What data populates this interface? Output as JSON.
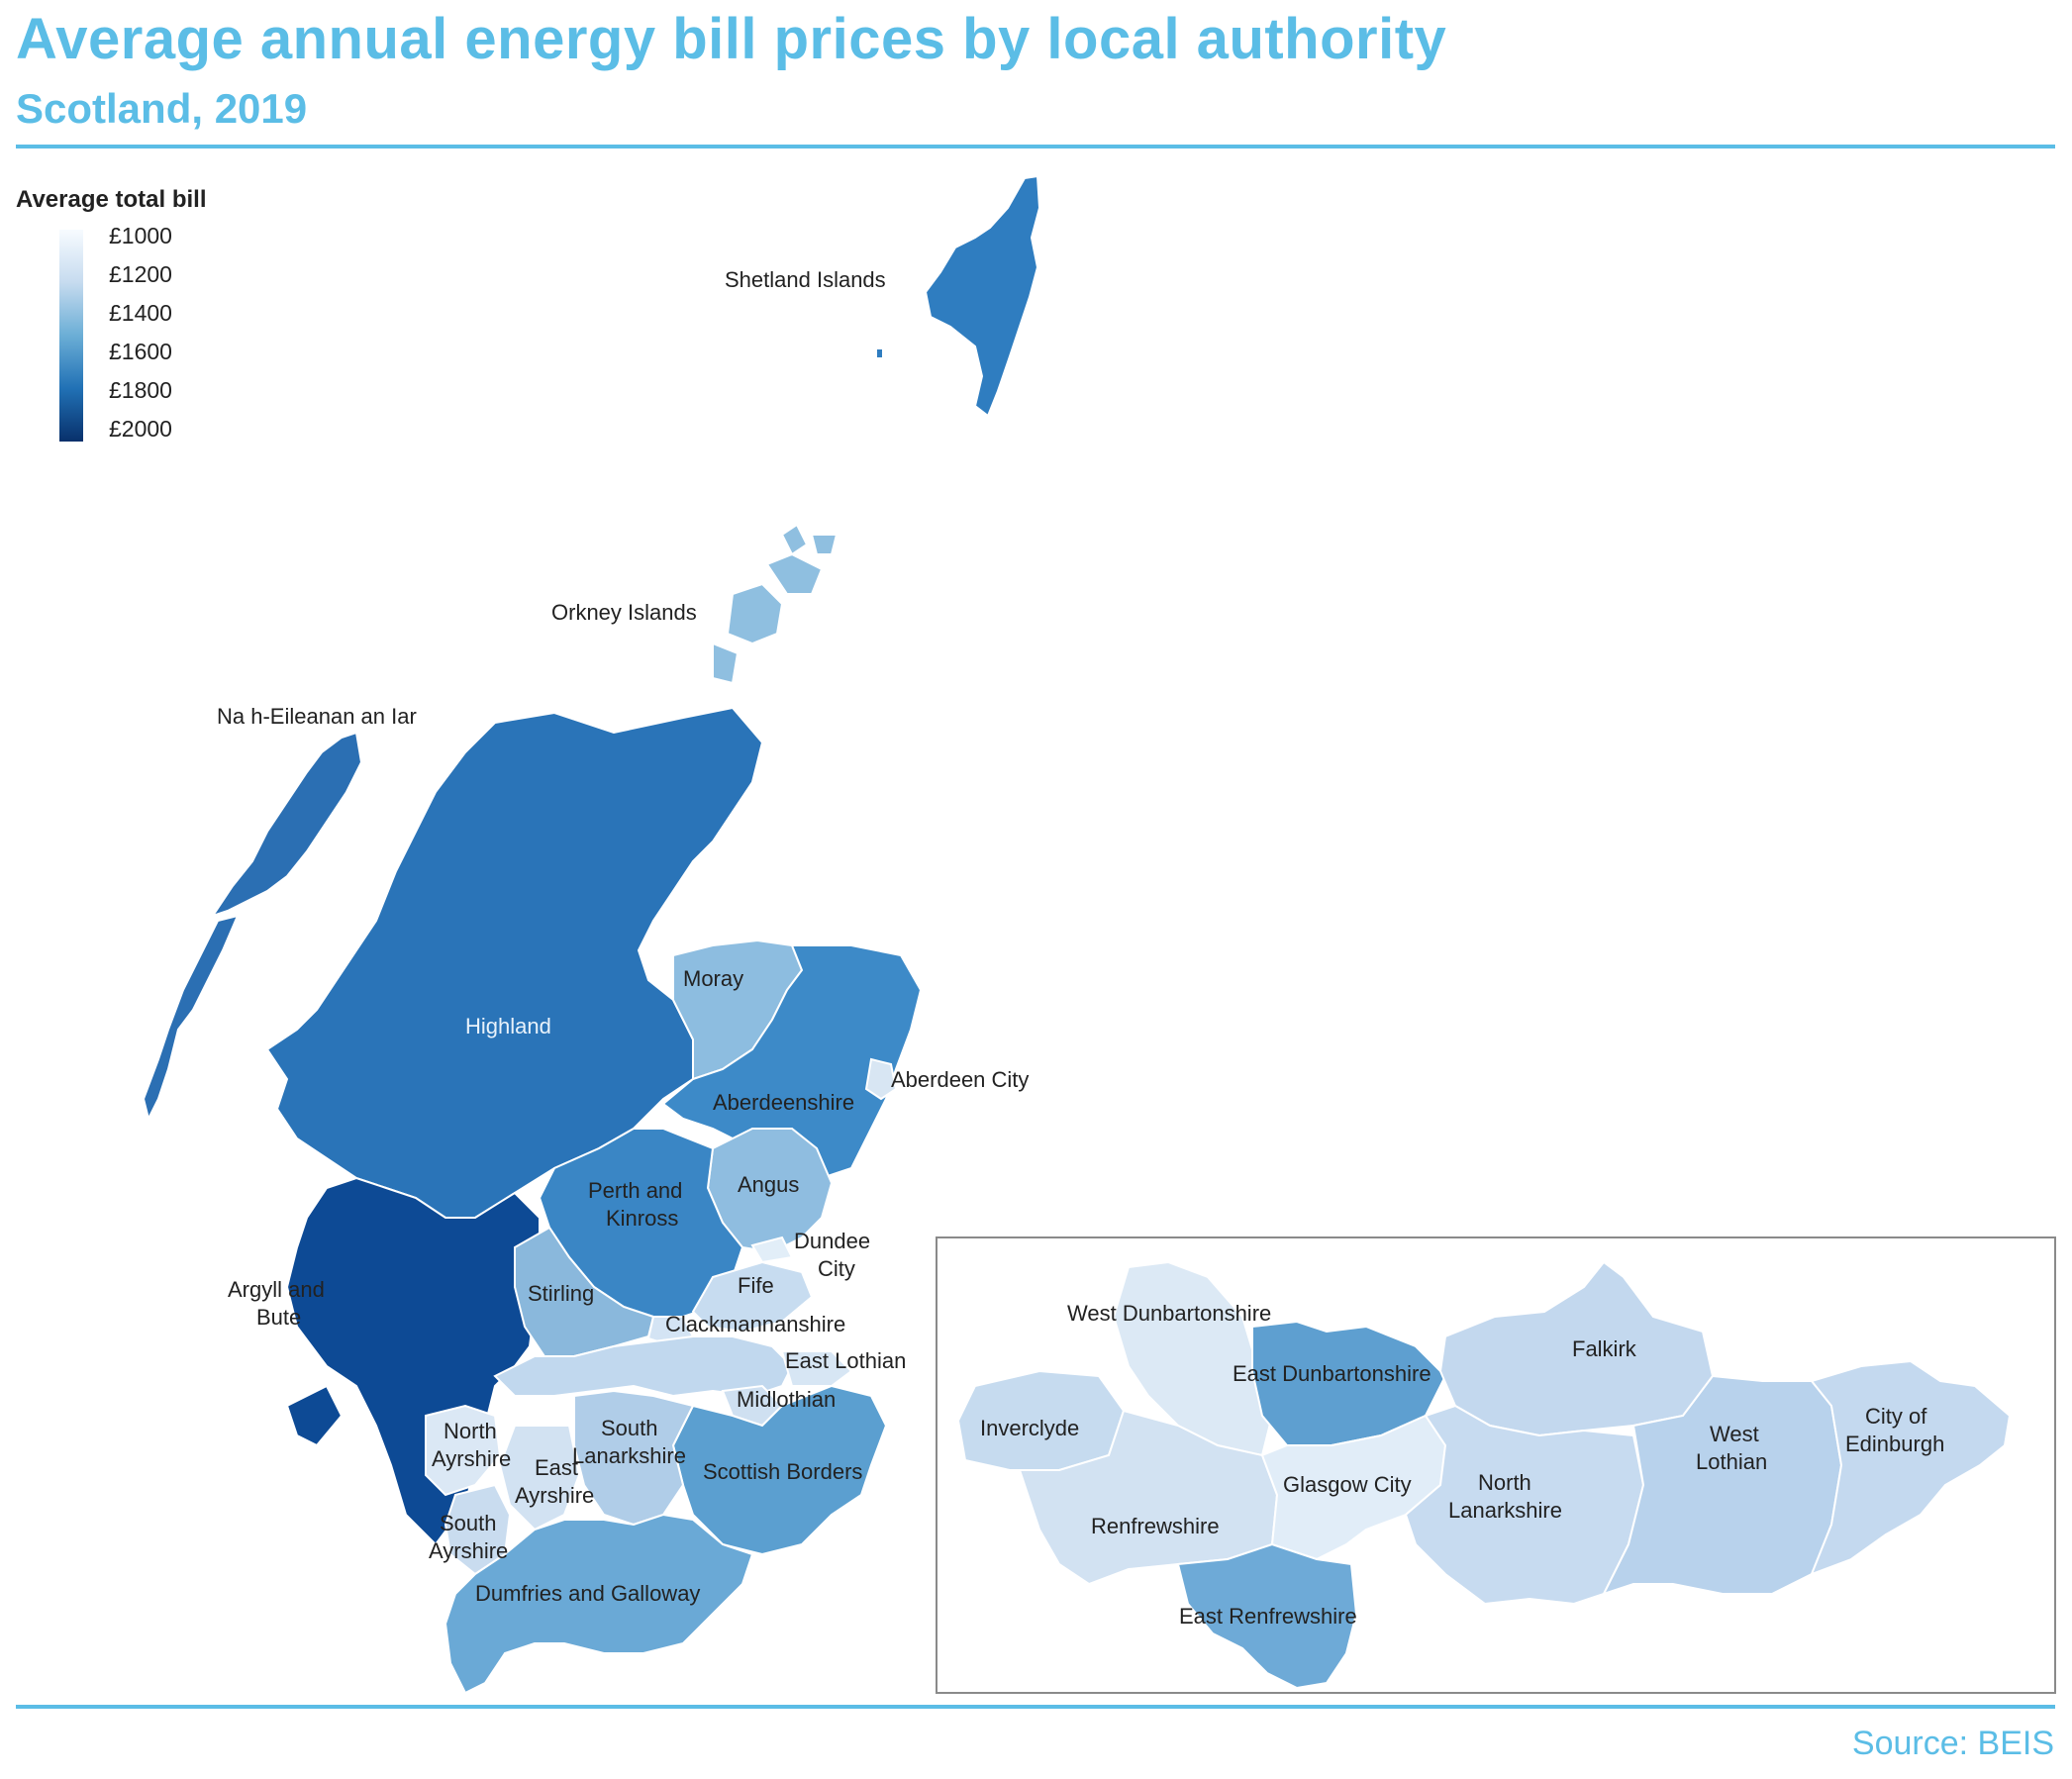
{
  "header": {
    "title": "Average annual energy bill prices by local authority",
    "subtitle": "Scotland, 2019"
  },
  "legend": {
    "title": "Average total bill",
    "ticks": [
      "£1000",
      "£1200",
      "£1400",
      "£1600",
      "£1800",
      "£2000"
    ],
    "scale_min": 1000,
    "scale_max": 2000,
    "colors": [
      "#f7fbff",
      "#c6dbef",
      "#6baed6",
      "#2171b5",
      "#08306b"
    ]
  },
  "footer": {
    "source": "Source: BEIS"
  },
  "regions": {
    "shetland": "Shetland Islands",
    "orkney": "Orkney Islands",
    "eilean": "Na h-Eileanan an Iar",
    "highland": "Highland",
    "moray": "Moray",
    "aberdeenshire": "Aberdeenshire",
    "aberdeen_city": "Aberdeen City",
    "angus": "Angus",
    "perth_l1": "Perth and",
    "perth_l2": "Kinross",
    "dundee_l1": "Dundee",
    "dundee_l2": "City",
    "fife": "Fife",
    "argyll_l1": "Argyll and",
    "argyll_l2": "Bute",
    "stirling": "Stirling",
    "clackmannanshire": "Clackmannanshire",
    "east_lothian": "East Lothian",
    "midlothian": "Midlothian",
    "north_ayrshire_l1": "North",
    "north_ayrshire_l2": "Ayrshire",
    "south_lanarkshire_l1": "South",
    "south_lanarkshire_l2": "Lanarkshire",
    "east_ayrshire_l1": "East",
    "east_ayrshire_l2": "Ayrshire",
    "scottish_borders": "Scottish Borders",
    "south_ayrshire_l1": "South",
    "south_ayrshire_l2": "Ayrshire",
    "dumfries": "Dumfries and Galloway"
  },
  "inset": {
    "west_dunbartonshire": "West Dunbartonshire",
    "east_dunbartonshire": "East Dunbartonshire",
    "falkirk": "Falkirk",
    "inverclyde": "Inverclyde",
    "west_lothian_l1": "West",
    "west_lothian_l2": "Lothian",
    "edinburgh_l1": "City of",
    "edinburgh_l2": "Edinburgh",
    "glasgow": "Glasgow City",
    "north_lanarkshire_l1": "North",
    "north_lanarkshire_l2": "Lanarkshire",
    "renfrewshire": "Renfrewshire",
    "east_renfrewshire": "East Renfrewshire"
  }
}
